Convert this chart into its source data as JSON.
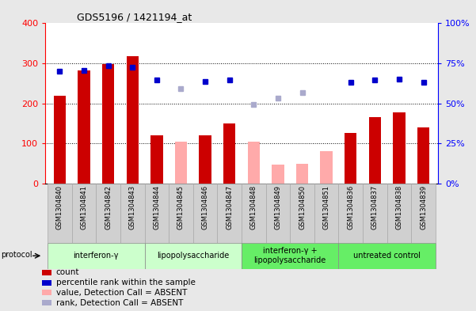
{
  "title": "GDS5196 / 1421194_at",
  "samples": [
    "GSM1304840",
    "GSM1304841",
    "GSM1304842",
    "GSM1304843",
    "GSM1304844",
    "GSM1304845",
    "GSM1304846",
    "GSM1304847",
    "GSM1304848",
    "GSM1304849",
    "GSM1304850",
    "GSM1304851",
    "GSM1304836",
    "GSM1304837",
    "GSM1304838",
    "GSM1304839"
  ],
  "count_values": [
    220,
    283,
    298,
    317,
    120,
    null,
    120,
    149,
    null,
    null,
    null,
    null,
    126,
    165,
    178,
    140
  ],
  "count_absent_values": [
    null,
    null,
    null,
    null,
    null,
    105,
    null,
    null,
    105,
    47,
    50,
    80,
    null,
    null,
    null,
    null
  ],
  "rank_values": [
    280,
    283,
    295,
    290,
    258,
    null,
    254,
    258,
    null,
    null,
    null,
    null,
    252,
    258,
    260,
    252
  ],
  "rank_absent_values": [
    null,
    null,
    null,
    null,
    null,
    237,
    null,
    null,
    197,
    213,
    228,
    null,
    null,
    null,
    null,
    null
  ],
  "bar_colors_present": "#cc0000",
  "bar_colors_absent": "#ffaaaa",
  "rank_colors_present": "#0000cc",
  "rank_colors_absent": "#aaaacc",
  "ylim_left": [
    0,
    400
  ],
  "ylim_right": [
    0,
    100
  ],
  "ytick_labels_left": [
    "0",
    "100",
    "200",
    "300",
    "400"
  ],
  "ytick_labels_right": [
    "0%",
    "25%",
    "50%",
    "75%",
    "100%"
  ],
  "protocols": [
    {
      "label": "interferon-γ",
      "start": 0,
      "end": 3,
      "color": "#ccffcc"
    },
    {
      "label": "lipopolysaccharide",
      "start": 4,
      "end": 7,
      "color": "#ccffcc"
    },
    {
      "label": "interferon-γ +\nlipopolysaccharide",
      "start": 8,
      "end": 11,
      "color": "#66ee66"
    },
    {
      "label": "untreated control",
      "start": 12,
      "end": 15,
      "color": "#66ee66"
    }
  ],
  "legend_items": [
    {
      "label": "count",
      "color": "#cc0000"
    },
    {
      "label": "percentile rank within the sample",
      "color": "#0000cc"
    },
    {
      "label": "value, Detection Call = ABSENT",
      "color": "#ffaaaa"
    },
    {
      "label": "rank, Detection Call = ABSENT",
      "color": "#aaaacc"
    }
  ],
  "plot_bg_color": "#ffffff",
  "bar_width": 0.5,
  "fig_bg_color": "#e8e8e8"
}
